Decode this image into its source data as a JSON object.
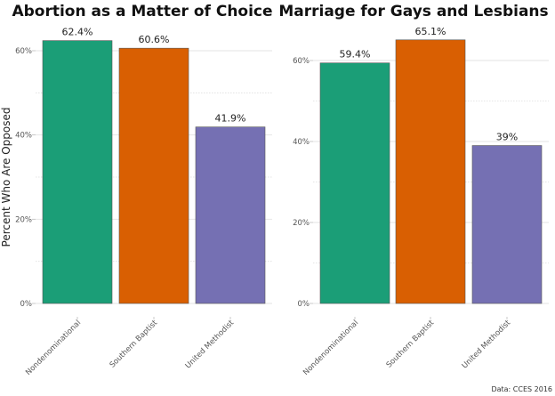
{
  "chart_data": [
    {
      "type": "bar",
      "title": "Abortion as a Matter of Choice",
      "ylabel": "Percent Who Are Opposed",
      "xlabel": "",
      "categories": [
        "Nondenominational",
        "Southern Baptist",
        "United Methodist"
      ],
      "values": [
        62.4,
        60.6,
        41.9
      ],
      "data_labels": [
        "62.4%",
        "60.6%",
        "41.9%"
      ],
      "colors": [
        "#1b9e77",
        "#d95f02",
        "#7570b3"
      ],
      "yticks": [
        0,
        20,
        40,
        60
      ],
      "ytick_labels": [
        "0%",
        "20%",
        "40%",
        "60%"
      ],
      "ylim": [
        0,
        66
      ],
      "grid": true,
      "legend": "none"
    },
    {
      "type": "bar",
      "title": "Marriage for Gays and Lesbians",
      "ylabel": "",
      "xlabel": "",
      "categories": [
        "Nondenominational",
        "Southern Baptist",
        "United Methodist"
      ],
      "values": [
        59.4,
        65.1,
        39
      ],
      "data_labels": [
        "59.4%",
        "65.1%",
        "39%"
      ],
      "colors": [
        "#1b9e77",
        "#d95f02",
        "#7570b3"
      ],
      "yticks": [
        0,
        20,
        40,
        60
      ],
      "ytick_labels": [
        "0%",
        "20%",
        "40%",
        "60%"
      ],
      "ylim": [
        0,
        68
      ],
      "grid": true,
      "legend": "none"
    }
  ],
  "caption": "Data: CCES 2016"
}
